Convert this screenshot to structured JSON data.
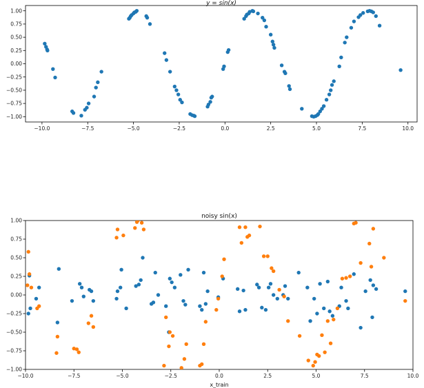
{
  "chart_data": [
    {
      "type": "scatter",
      "title": "y = sin(x)",
      "xlabel": "",
      "ylabel": "",
      "xlim": [
        -10.9,
        10.5
      ],
      "ylim": [
        -1.1,
        1.1
      ],
      "xticks": [
        -10.0,
        -7.5,
        -5.0,
        -2.5,
        0.0,
        2.5,
        5.0,
        7.5,
        10.0
      ],
      "xtick_labels": [
        "−10.0",
        "−7.5",
        "−5.0",
        "−2.5",
        "0.0",
        "2.5",
        "5.0",
        "7.5",
        "10.0"
      ],
      "yticks": [
        1.0,
        0.75,
        0.5,
        0.25,
        0.0,
        -0.25,
        -0.5,
        -0.75,
        -1.0
      ],
      "ytick_labels": [
        "1.00",
        "0.75",
        "0.50",
        "0.25",
        "0.00",
        "−0.25",
        "−0.50",
        "−0.75",
        "−1.00"
      ],
      "grid": false,
      "series": [
        {
          "color": "#1f77b4",
          "x": [
            -9.85,
            -9.78,
            -9.72,
            -9.7,
            -9.4,
            -9.28,
            -8.35,
            -8.28,
            -7.85,
            -7.65,
            -7.55,
            -7.45,
            -7.15,
            -7.05,
            -6.95,
            -6.75,
            -5.25,
            -5.2,
            -5.15,
            -5.1,
            -5.0,
            -4.95,
            -4.88,
            -4.82,
            -4.3,
            -4.25,
            -4.1,
            -3.3,
            -3.2,
            -3.0,
            -2.75,
            -2.65,
            -2.55,
            -2.45,
            -2.35,
            -1.9,
            -1.8,
            -1.7,
            -1.65,
            -0.95,
            -0.9,
            -0.8,
            -0.75,
            -0.7,
            -0.1,
            -0.05,
            0.15,
            0.2,
            1.05,
            1.15,
            1.2,
            1.3,
            1.35,
            1.5,
            1.55,
            1.8,
            2.05,
            2.15,
            2.25,
            2.5,
            2.6,
            2.65,
            2.7,
            3.1,
            3.25,
            3.3,
            3.5,
            3.55,
            4.2,
            4.75,
            4.85,
            4.95,
            5.05,
            5.1,
            5.2,
            5.3,
            5.4,
            5.55,
            5.7,
            5.78,
            5.85,
            5.95,
            6.25,
            6.35,
            6.55,
            6.65,
            6.9,
            7.05,
            7.3,
            7.4,
            7.55,
            7.8,
            7.9,
            8.0,
            8.1,
            8.25,
            8.45,
            9.6
          ],
          "y": [
            0.38,
            0.32,
            0.27,
            0.25,
            -0.1,
            -0.26,
            -0.9,
            -0.93,
            -0.98,
            -0.87,
            -0.83,
            -0.75,
            -0.62,
            -0.45,
            -0.35,
            -0.15,
            0.85,
            0.87,
            0.9,
            0.92,
            0.95,
            0.97,
            0.98,
            1.0,
            0.9,
            0.87,
            0.75,
            0.2,
            0.07,
            -0.15,
            -0.43,
            -0.5,
            -0.58,
            -0.68,
            -0.73,
            -0.95,
            -0.97,
            -0.98,
            -0.99,
            -0.81,
            -0.77,
            -0.72,
            -0.64,
            -0.62,
            -0.1,
            -0.05,
            0.22,
            0.26,
            0.85,
            0.9,
            0.93,
            0.95,
            0.98,
            1.0,
            0.99,
            0.95,
            0.87,
            0.82,
            0.7,
            0.55,
            0.42,
            0.36,
            0.3,
            -0.03,
            -0.15,
            -0.18,
            -0.42,
            -0.48,
            -0.85,
            -0.99,
            -1.0,
            -0.99,
            -0.97,
            -0.95,
            -0.9,
            -0.85,
            -0.8,
            -0.68,
            -0.58,
            -0.5,
            -0.4,
            -0.33,
            -0.05,
            0.12,
            0.4,
            0.5,
            0.68,
            0.8,
            0.88,
            0.92,
            0.96,
            0.99,
            1.0,
            0.99,
            0.97,
            0.9,
            0.72,
            -0.12
          ]
        }
      ]
    },
    {
      "type": "scatter",
      "title": "noisy sin(x)",
      "xlabel": "x_train",
      "ylabel": "",
      "xlim": [
        -10.0,
        10.0
      ],
      "ylim": [
        -1.0,
        1.0
      ],
      "xticks": [
        -10.0,
        -7.5,
        -5.0,
        -2.5,
        0.0,
        2.5,
        5.0,
        7.5,
        10.0
      ],
      "xtick_labels": [
        "−10.0",
        "−7.5",
        "−5.0",
        "−2.5",
        "0.0",
        "2.5",
        "5.0",
        "7.5",
        "10.0"
      ],
      "yticks": [
        1.0,
        0.75,
        0.5,
        0.25,
        0.0,
        -0.25,
        -0.5,
        -0.75,
        -1.0
      ],
      "ytick_labels": [
        "1.00",
        "0.75",
        "0.50",
        "0.25",
        "0.00",
        "−0.25",
        "−0.50",
        "−0.75",
        "−1.00"
      ],
      "grid": false,
      "series": [
        {
          "color": "#1f77b4",
          "x": [
            -9.85,
            -9.8,
            -9.75,
            -9.45,
            -9.3,
            -8.35,
            -8.28,
            -7.6,
            -7.2,
            -7.1,
            -7.0,
            -6.7,
            -6.6,
            -6.5,
            -5.3,
            -5.25,
            -5.1,
            -5.05,
            -4.8,
            -4.3,
            -4.15,
            -4.05,
            -3.95,
            -3.5,
            -3.4,
            -3.3,
            -3.15,
            -2.75,
            -2.6,
            -2.55,
            -2.45,
            -2.3,
            -2.0,
            -1.85,
            -1.75,
            -1.6,
            -1.0,
            -0.9,
            -0.8,
            -0.7,
            -0.6,
            -0.05,
            0.2,
            0.95,
            1.05,
            1.25,
            1.35,
            1.95,
            2.05,
            2.2,
            2.4,
            2.55,
            2.65,
            2.8,
            3.0,
            3.3,
            3.4,
            3.55,
            4.1,
            4.55,
            4.7,
            4.9,
            5.05,
            5.2,
            5.4,
            5.6,
            5.7,
            5.85,
            6.2,
            6.3,
            6.55,
            6.65,
            6.95,
            7.3,
            7.55,
            7.8,
            7.9,
            7.95,
            8.1,
            9.6
          ],
          "y": [
            -0.25,
            0.26,
            -0.18,
            -0.05,
            0.1,
            -0.37,
            0.35,
            -0.08,
            0.15,
            0.1,
            -0.02,
            0.07,
            0.05,
            -0.08,
            -0.05,
            0.05,
            0.1,
            0.34,
            -0.18,
            0.12,
            0.14,
            0.2,
            0.5,
            -0.12,
            -0.1,
            0.3,
            0.0,
            -0.15,
            -0.5,
            0.22,
            0.17,
            0.1,
            0.27,
            -0.08,
            -0.13,
            0.34,
            -0.15,
            -0.2,
            0.3,
            -0.12,
            0.05,
            -0.03,
            0.22,
            0.08,
            -0.22,
            0.06,
            -0.2,
            0.14,
            0.1,
            -0.17,
            -0.2,
            0.1,
            0.15,
            0.0,
            -0.05,
            0.0,
            0.12,
            -0.05,
            0.3,
            0.1,
            -0.35,
            -0.05,
            -0.25,
            0.15,
            -0.18,
            0.18,
            -0.22,
            -0.28,
            -0.15,
            0.1,
            -0.08,
            -0.18,
            0.28,
            -0.44,
            0.05,
            0.2,
            -0.3,
            0.13,
            0.08,
            0.05
          ]
        },
        {
          "color": "#ff7f0e",
          "x": [
            -9.9,
            -9.85,
            -9.8,
            -9.7,
            -9.4,
            -9.3,
            -8.4,
            -8.35,
            -7.5,
            -7.35,
            -7.25,
            -6.75,
            -6.6,
            -6.5,
            -5.3,
            -5.25,
            -4.95,
            -4.35,
            -4.25,
            -4.2,
            -4.0,
            -3.9,
            -2.85,
            -2.75,
            -2.6,
            -2.55,
            -2.4,
            -1.95,
            -1.8,
            -1.7,
            -1.0,
            -0.9,
            -0.8,
            -0.7,
            -0.15,
            -0.05,
            0.15,
            0.25,
            1.05,
            1.15,
            1.35,
            1.45,
            1.55,
            2.1,
            2.3,
            2.5,
            2.7,
            2.8,
            3.1,
            3.35,
            3.55,
            4.15,
            4.6,
            4.85,
            4.95,
            5.05,
            5.15,
            5.3,
            5.45,
            5.6,
            5.75,
            5.9,
            6.1,
            6.35,
            6.55,
            6.75,
            6.95,
            7.05,
            7.3,
            7.75,
            7.85,
            7.95,
            8.5,
            9.6
          ],
          "y": [
            0.13,
            0.58,
            0.28,
            0.1,
            -0.18,
            -0.15,
            -0.78,
            -0.56,
            -0.72,
            -0.73,
            -0.77,
            -0.38,
            -0.28,
            -0.43,
            0.77,
            0.88,
            0.8,
            0.9,
            0.98,
            1.0,
            0.97,
            0.88,
            -0.95,
            -0.3,
            -0.69,
            -0.5,
            -0.55,
            -0.98,
            -0.86,
            -0.66,
            -0.95,
            -0.93,
            -0.66,
            -0.36,
            -0.2,
            -0.05,
            0.25,
            0.48,
            0.91,
            0.7,
            0.91,
            0.78,
            0.8,
            0.92,
            0.52,
            0.52,
            0.36,
            0.32,
            0.07,
            -0.02,
            -0.35,
            -0.55,
            -0.88,
            -0.95,
            -0.9,
            -0.8,
            -0.82,
            -0.54,
            -0.77,
            -0.35,
            -0.65,
            -0.33,
            -0.18,
            0.22,
            0.23,
            0.25,
            0.96,
            0.97,
            0.43,
            0.69,
            0.38,
            0.89,
            0.5,
            -0.08
          ]
        }
      ]
    }
  ]
}
